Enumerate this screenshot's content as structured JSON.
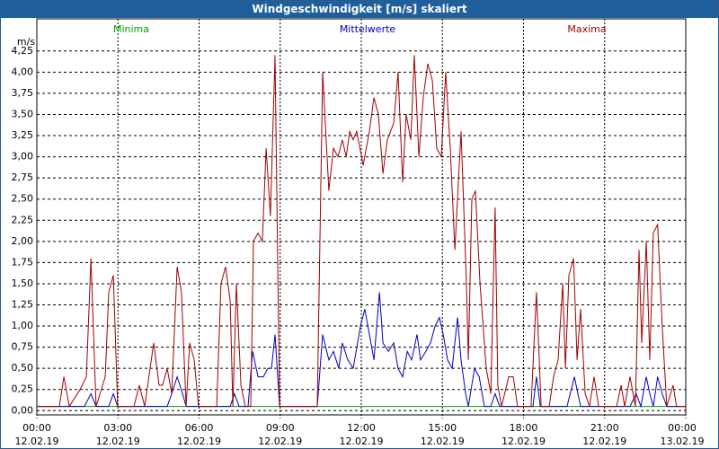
{
  "chart_data": {
    "type": "line",
    "title": "Windgeschwindigkeit [m/s] skaliert",
    "y_label": "m/s",
    "xlim": [
      0,
      24
    ],
    "ylim": [
      -0.05,
      4.63
    ],
    "xticks": [
      {
        "value": 0,
        "label": "00:00\n12.02.19"
      },
      {
        "value": 3,
        "label": "03:00\n12.02.19"
      },
      {
        "value": 6,
        "label": "06:00\n12.02.19"
      },
      {
        "value": 9,
        "label": "09:00\n12.02.19"
      },
      {
        "value": 12,
        "label": "12:00\n12.02.19"
      },
      {
        "value": 15,
        "label": "15:00\n12.02.19"
      },
      {
        "value": 18,
        "label": "18:00\n12.02.19"
      },
      {
        "value": 21,
        "label": "21:00\n12.02.19"
      },
      {
        "value": 24,
        "label": "00:00\n13.02.19"
      }
    ],
    "yticks": [
      {
        "value": 0,
        "label": "0,00"
      },
      {
        "value": 0.25,
        "label": "0,25"
      },
      {
        "value": 0.5,
        "label": "0,50"
      },
      {
        "value": 0.75,
        "label": "0,75"
      },
      {
        "value": 1,
        "label": "1,00"
      },
      {
        "value": 1.25,
        "label": "1,25"
      },
      {
        "value": 1.5,
        "label": "1,50"
      },
      {
        "value": 1.75,
        "label": "1,75"
      },
      {
        "value": 2,
        "label": "2,00"
      },
      {
        "value": 2.25,
        "label": "2,25"
      },
      {
        "value": 2.5,
        "label": "2,50"
      },
      {
        "value": 2.75,
        "label": "2,75"
      },
      {
        "value": 3,
        "label": "3,00"
      },
      {
        "value": 3.25,
        "label": "3,25"
      },
      {
        "value": 3.5,
        "label": "3,50"
      },
      {
        "value": 3.75,
        "label": "3,75"
      },
      {
        "value": 4,
        "label": "4,00"
      },
      {
        "value": 4.25,
        "label": "4,25"
      }
    ],
    "grid": true,
    "series": [
      {
        "name": "Minima",
        "color": "#00a000",
        "x": [
          0,
          24
        ],
        "values": [
          0.05,
          0.05
        ]
      },
      {
        "name": "Mittelwerte",
        "color": "#0000c0",
        "x": [
          0,
          1.76,
          2.0,
          2.19,
          2.66,
          2.83,
          2.99,
          4.82,
          4.99,
          5.19,
          5.39,
          5.52,
          7.15,
          7.31,
          7.48,
          7.81,
          7.98,
          8.18,
          8.38,
          8.54,
          8.68,
          8.81,
          8.98,
          10.37,
          10.57,
          10.8,
          10.97,
          11.17,
          11.3,
          11.5,
          11.7,
          11.97,
          12.13,
          12.3,
          12.47,
          12.67,
          12.8,
          13.0,
          13.2,
          13.36,
          13.53,
          13.7,
          13.86,
          14.06,
          14.19,
          14.39,
          14.56,
          14.73,
          14.89,
          15.03,
          15.19,
          15.36,
          15.56,
          15.69,
          15.86,
          15.96,
          16.19,
          16.36,
          16.55,
          16.79,
          16.95,
          17.12,
          18.35,
          18.48,
          18.62,
          19.61,
          19.88,
          20.11,
          21.94,
          22.17,
          22.34,
          22.54,
          22.67,
          22.8,
          22.96,
          23.13,
          23.3,
          24
        ],
        "values": [
          0.05,
          0.05,
          0.2,
          0.05,
          0.05,
          0.2,
          0.05,
          0.05,
          0.2,
          0.4,
          0.2,
          0.05,
          0.05,
          0.2,
          0.05,
          0.05,
          0.7,
          0.4,
          0.4,
          0.5,
          0.5,
          0.9,
          0.05,
          0.05,
          0.9,
          0.6,
          0.7,
          0.5,
          0.8,
          0.6,
          0.5,
          1.0,
          1.2,
          0.9,
          0.6,
          1.4,
          0.8,
          0.7,
          0.8,
          0.5,
          0.4,
          0.7,
          0.6,
          0.9,
          0.6,
          0.7,
          0.8,
          1.0,
          1.1,
          0.9,
          0.6,
          0.5,
          1.1,
          0.6,
          0.2,
          0.05,
          0.5,
          0.4,
          0.05,
          0.05,
          0.2,
          0.05,
          0.05,
          0.4,
          0.05,
          0.05,
          0.4,
          0.05,
          0.05,
          0.2,
          0.05,
          0.4,
          0.2,
          0.05,
          0.4,
          0.2,
          0.05,
          0.05
        ]
      },
      {
        "name": "Maxima",
        "color": "#a00000",
        "x": [
          0,
          0.83,
          1.0,
          1.2,
          1.6,
          1.83,
          2.0,
          2.19,
          2.53,
          2.66,
          2.83,
          2.99,
          3.59,
          3.79,
          3.99,
          4.32,
          4.52,
          4.65,
          4.82,
          4.99,
          5.19,
          5.35,
          5.52,
          5.65,
          5.82,
          5.98,
          6.65,
          6.81,
          6.98,
          7.15,
          7.25,
          7.38,
          7.55,
          7.71,
          7.91,
          8.01,
          8.18,
          8.34,
          8.48,
          8.64,
          8.81,
          8.98,
          10.37,
          10.57,
          10.8,
          10.97,
          11.14,
          11.3,
          11.44,
          11.57,
          11.7,
          11.83,
          12.07,
          12.3,
          12.47,
          12.63,
          12.8,
          12.96,
          13.2,
          13.36,
          13.53,
          13.66,
          13.83,
          13.96,
          14.13,
          14.29,
          14.46,
          14.63,
          14.79,
          14.96,
          15.12,
          15.29,
          15.46,
          15.69,
          15.89,
          15.96,
          16.09,
          16.22,
          16.39,
          16.62,
          16.79,
          16.95,
          17.05,
          17.19,
          17.45,
          17.62,
          17.78,
          18.28,
          18.48,
          18.65,
          18.95,
          19.11,
          19.28,
          19.45,
          19.55,
          19.68,
          19.85,
          19.98,
          20.11,
          20.28,
          20.44,
          20.61,
          20.78,
          21.44,
          21.61,
          21.74,
          21.94,
          22.14,
          22.27,
          22.37,
          22.54,
          22.67,
          22.8,
          22.96,
          23.13,
          23.3,
          23.53,
          23.66,
          24
        ],
        "values": [
          0.05,
          0.05,
          0.4,
          0.05,
          0.25,
          0.4,
          1.8,
          0.05,
          0.4,
          1.4,
          1.6,
          0.05,
          0.05,
          0.3,
          0.05,
          0.8,
          0.3,
          0.3,
          0.5,
          0.2,
          1.7,
          1.4,
          0.05,
          0.8,
          0.6,
          0.05,
          0.05,
          1.5,
          1.7,
          1.3,
          0.05,
          1.5,
          0.3,
          0.05,
          0.05,
          2.0,
          2.1,
          2.0,
          3.1,
          2.3,
          4.2,
          0.05,
          0.05,
          4.0,
          2.6,
          3.1,
          3.0,
          3.2,
          3.0,
          3.3,
          3.2,
          3.3,
          2.9,
          3.3,
          3.7,
          3.5,
          2.8,
          3.2,
          3.4,
          4.0,
          2.7,
          3.5,
          3.2,
          4.2,
          3.0,
          3.7,
          4.1,
          3.9,
          3.1,
          3.0,
          4.0,
          3.1,
          1.9,
          3.3,
          1.5,
          0.6,
          2.5,
          2.6,
          1.5,
          0.5,
          0.2,
          2.4,
          0.3,
          0.05,
          0.4,
          0.4,
          0.05,
          0.05,
          1.4,
          0.05,
          0.05,
          0.4,
          0.6,
          1.5,
          0.5,
          1.6,
          1.8,
          0.6,
          1.2,
          0.2,
          0.05,
          0.4,
          0.05,
          0.05,
          0.3,
          0.05,
          0.4,
          0.05,
          1.9,
          0.8,
          2.0,
          0.6,
          2.1,
          2.2,
          1.0,
          0.05,
          0.3,
          0.05,
          0.05
        ]
      }
    ]
  }
}
